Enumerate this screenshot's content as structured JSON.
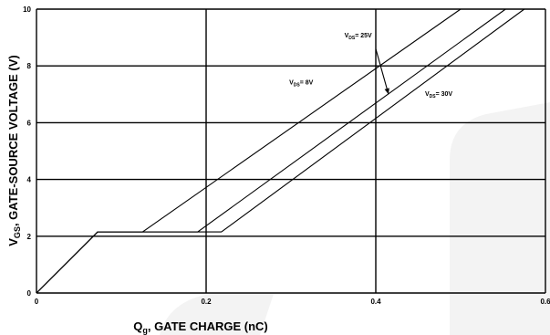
{
  "chart_data": {
    "type": "line",
    "title": "",
    "xlabel": {
      "main": "Q",
      "sub": "g",
      "rest": ", GATE CHARGE (nC)"
    },
    "ylabel": {
      "main": "V",
      "sub": "GS",
      "rest": ", GATE-SOURCE VOLTAGE (V)"
    },
    "xlim": [
      0,
      0.6
    ],
    "ylim": [
      0,
      10
    ],
    "x_ticks": [
      "0",
      "0.2",
      "0.4",
      "0.6"
    ],
    "y_ticks": [
      "0",
      "2",
      "4",
      "6",
      "8",
      "10"
    ],
    "grid": true,
    "series": [
      {
        "name": "VDS= 8V",
        "x": [
          0,
          0.072,
          0.125,
          0.5
        ],
        "y": [
          0,
          2.15,
          2.15,
          10
        ]
      },
      {
        "name": "VDS= 25V",
        "x": [
          0,
          0.072,
          0.19,
          0.553
        ],
        "y": [
          0,
          2.15,
          2.15,
          10
        ]
      },
      {
        "name": "VDS= 30V",
        "x": [
          0,
          0.072,
          0.218,
          0.575
        ],
        "y": [
          0,
          2.15,
          2.15,
          10
        ]
      }
    ],
    "annotations": [
      {
        "pre": "V",
        "sub": "DS",
        "post": "= 8V",
        "x": 0.298,
        "y": 7.35
      },
      {
        "pre": "V",
        "sub": "DS",
        "post": "= 25V",
        "x": 0.363,
        "y": 9.0
      },
      {
        "pre": "V",
        "sub": "DS",
        "post": "=  30V",
        "x": 0.458,
        "y": 6.95
      }
    ],
    "arrow": {
      "from": [
        0.4,
        8.6
      ],
      "to": [
        0.415,
        7.0
      ]
    }
  }
}
